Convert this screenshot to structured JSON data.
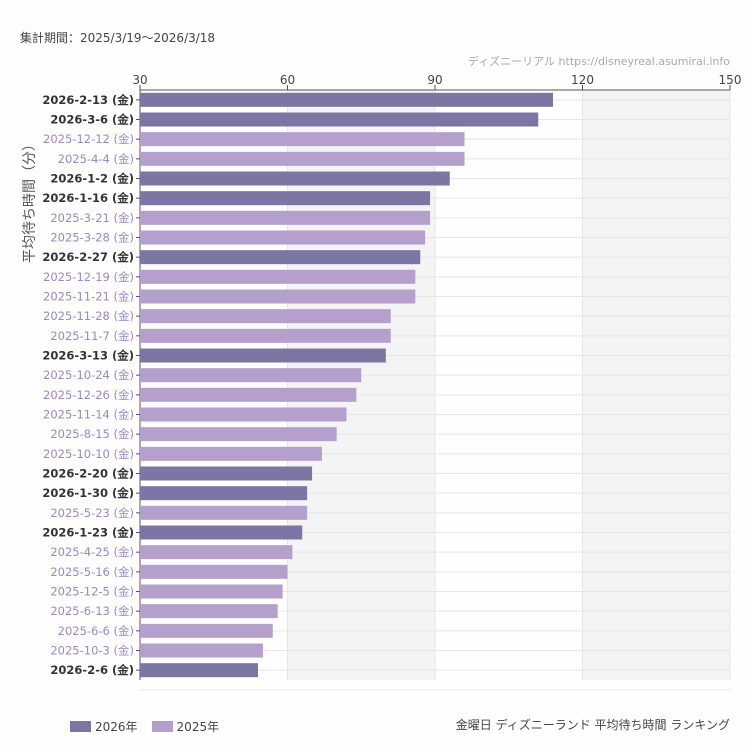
{
  "header": {
    "period": "集計期間：2025/3/19～2026/3/18",
    "credit": "ディズニーリアル https://disneyreal.asumirai.info"
  },
  "footer": {
    "caption": "金曜日 ディズニーランド 平均待ち時間 ランキング"
  },
  "colors": {
    "2026年": "#7b76a3",
    "2025年": "#b49fcd",
    "label2026": "#333333",
    "label2025": "#9d86c4"
  },
  "chart_data": {
    "type": "bar",
    "orientation": "horizontal",
    "ylabel": "平均待ち時間（分）",
    "xlim": [
      30,
      150
    ],
    "xticks": [
      "30",
      "60",
      "90",
      "120",
      "150"
    ],
    "grid": true,
    "legend_placement": "bottom-left",
    "legend": [
      "2026年",
      "2025年"
    ],
    "categories": [
      "2026-2-13 (金)",
      "2026-3-6 (金)",
      "2025-12-12 (金)",
      "2025-4-4 (金)",
      "2026-1-2 (金)",
      "2026-1-16 (金)",
      "2025-3-21 (金)",
      "2025-3-28 (金)",
      "2026-2-27 (金)",
      "2025-12-19 (金)",
      "2025-11-21 (金)",
      "2025-11-28 (金)",
      "2025-11-7 (金)",
      "2026-3-13 (金)",
      "2025-10-24 (金)",
      "2025-12-26 (金)",
      "2025-11-14 (金)",
      "2025-8-15 (金)",
      "2025-10-10 (金)",
      "2026-2-20 (金)",
      "2026-1-30 (金)",
      "2025-5-23 (金)",
      "2026-1-23 (金)",
      "2025-4-25 (金)",
      "2025-5-16 (金)",
      "2025-12-5 (金)",
      "2025-6-13 (金)",
      "2025-6-6 (金)",
      "2025-10-3 (金)",
      "2026-2-6 (金)"
    ],
    "values": [
      114,
      111,
      96,
      96,
      93,
      89,
      89,
      88,
      87,
      86,
      86,
      81,
      81,
      80,
      75,
      74,
      72,
      70,
      67,
      65,
      64,
      64,
      63,
      61,
      60,
      59,
      58,
      57,
      55,
      54
    ],
    "series_of": [
      "2026年",
      "2026年",
      "2025年",
      "2025年",
      "2026年",
      "2026年",
      "2025年",
      "2025年",
      "2026年",
      "2025年",
      "2025年",
      "2025年",
      "2025年",
      "2026年",
      "2025年",
      "2025年",
      "2025年",
      "2025年",
      "2025年",
      "2026年",
      "2026年",
      "2025年",
      "2026年",
      "2025年",
      "2025年",
      "2025年",
      "2025年",
      "2025年",
      "2025年",
      "2026年"
    ]
  }
}
